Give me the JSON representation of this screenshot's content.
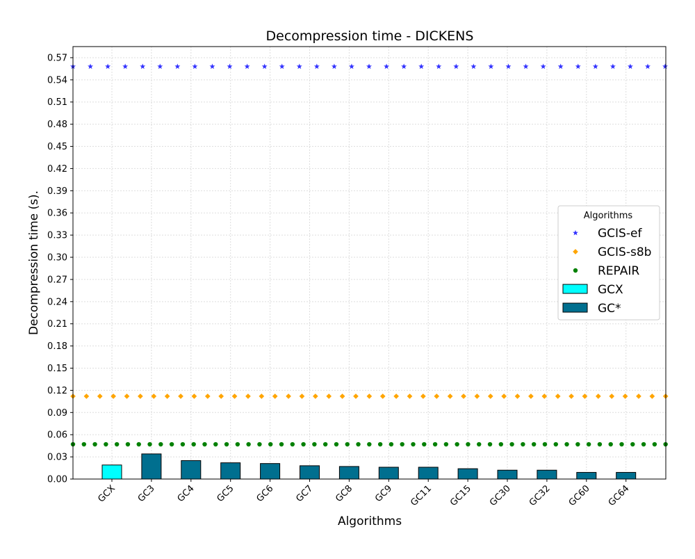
{
  "chart_data": {
    "type": "bar",
    "title": "Decompression time -  DICKENS",
    "xlabel": "Algorithms",
    "ylabel": "Decompression time (s).",
    "ylim": [
      0,
      0.585
    ],
    "yticks": [
      "0.00",
      "0.03",
      "0.06",
      "0.09",
      "0.12",
      "0.15",
      "0.18",
      "0.21",
      "0.24",
      "0.27",
      "0.30",
      "0.33",
      "0.36",
      "0.39",
      "0.42",
      "0.45",
      "0.48",
      "0.51",
      "0.54",
      "0.57"
    ],
    "grid": true,
    "categories": [
      "GCX",
      "GC3",
      "GC4",
      "GC5",
      "GC6",
      "GC7",
      "GC8",
      "GC9",
      "GC11",
      "GC15",
      "GC30",
      "GC32",
      "GC60",
      "GC64"
    ],
    "series": [
      {
        "name": "GCX",
        "kind": "bar",
        "color": "#00ffff",
        "values": [
          0.019,
          null,
          null,
          null,
          null,
          null,
          null,
          null,
          null,
          null,
          null,
          null,
          null,
          null
        ]
      },
      {
        "name": "GC*",
        "kind": "bar",
        "color": "#006f8f",
        "values": [
          null,
          0.034,
          0.025,
          0.022,
          0.021,
          0.018,
          0.017,
          0.016,
          0.016,
          0.014,
          0.012,
          0.012,
          0.009,
          0.009
        ]
      },
      {
        "name": "GCIS-ef",
        "kind": "line",
        "marker": "star",
        "color": "#3333ff",
        "value": 0.558
      },
      {
        "name": "GCIS-s8b",
        "kind": "line",
        "marker": "diamond",
        "color": "#ffa500",
        "value": 0.112
      },
      {
        "name": "REPAIR",
        "kind": "line",
        "marker": "circle",
        "color": "#008000",
        "value": 0.047
      }
    ],
    "legend": {
      "title": "Algorithms",
      "placement": "center-right",
      "entries": [
        "GCIS-ef",
        "GCIS-s8b",
        "REPAIR",
        "GCX",
        "GC*"
      ]
    }
  }
}
